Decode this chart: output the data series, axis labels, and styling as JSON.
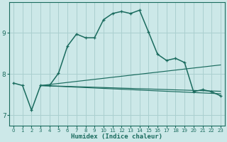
{
  "xlabel": "Humidex (Indice chaleur)",
  "ylabel": "",
  "xlim": [
    -0.5,
    23.5
  ],
  "ylim": [
    6.75,
    9.75
  ],
  "xticks": [
    0,
    1,
    2,
    3,
    4,
    5,
    6,
    7,
    8,
    9,
    10,
    11,
    12,
    13,
    14,
    15,
    16,
    17,
    18,
    19,
    20,
    21,
    22,
    23
  ],
  "yticks": [
    7,
    8,
    9
  ],
  "bg_color": "#cce8e8",
  "line_color": "#1a6b5e",
  "grid_color": "#aacfcf",
  "main_curve": {
    "x": [
      0,
      1,
      2,
      3,
      4,
      5,
      6,
      7,
      8,
      9,
      10,
      11,
      12,
      13,
      14,
      15,
      16,
      17,
      18,
      19,
      20,
      21,
      22,
      23
    ],
    "y": [
      7.78,
      7.72,
      7.12,
      7.72,
      7.72,
      8.02,
      8.68,
      8.97,
      8.88,
      8.88,
      9.32,
      9.47,
      9.52,
      9.47,
      9.55,
      9.02,
      8.48,
      8.33,
      8.38,
      8.28,
      7.57,
      7.62,
      7.57,
      7.47
    ]
  },
  "flat_lines": [
    {
      "x": [
        3,
        23
      ],
      "y": [
        7.72,
        7.52
      ]
    },
    {
      "x": [
        3,
        23
      ],
      "y": [
        7.72,
        7.58
      ]
    },
    {
      "x": [
        3,
        23
      ],
      "y": [
        7.72,
        8.22
      ]
    }
  ]
}
